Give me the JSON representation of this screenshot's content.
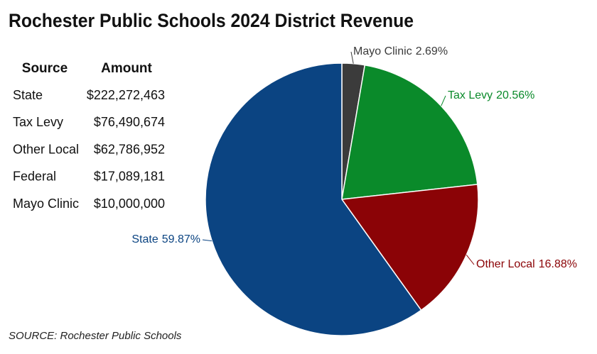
{
  "chart_data": {
    "type": "pie",
    "title": "Rochester Public Schools 2024 District Revenue",
    "categories": [
      "Mayo Clinic",
      "Tax Levy",
      "Other Local",
      "State"
    ],
    "values": [
      2.69,
      20.56,
      16.88,
      59.87
    ],
    "value_labels": [
      "2.69%",
      "20.56%",
      "16.88%",
      "59.87%"
    ],
    "colors": [
      "#3b3b3b",
      "#0a8a2a",
      "#8b0306",
      "#0b4482"
    ],
    "note": "SOURCE: Rochester Public Schools"
  },
  "table": {
    "header": [
      "Source",
      "Amount"
    ],
    "rows": [
      [
        "State",
        "$222,272,463"
      ],
      [
        "Tax Levy",
        "$76,490,674"
      ],
      [
        "Other Local",
        "$62,786,952"
      ],
      [
        "Federal",
        "$17,089,181"
      ],
      [
        "Mayo Clinic",
        "$10,000,000"
      ]
    ]
  }
}
